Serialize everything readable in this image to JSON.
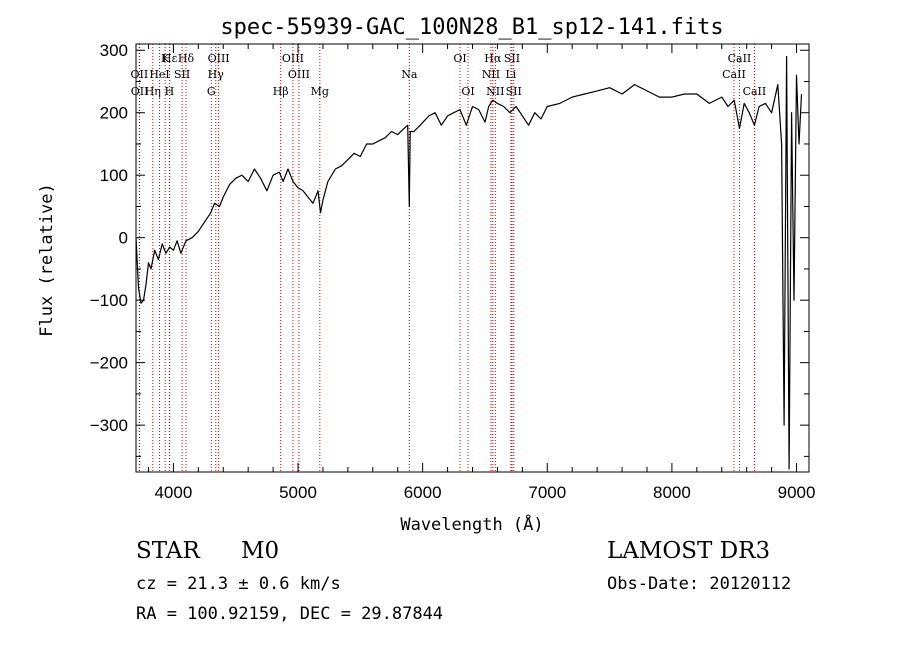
{
  "chart_data": {
    "type": "line",
    "title": "spec-55939-GAC_100N28_B1_sp12-141.fits",
    "xlabel": "Wavelength (Å)",
    "ylabel": "Flux (relative)",
    "xlim": [
      3700,
      9100
    ],
    "ylim": [
      -375,
      310
    ],
    "x_ticks": [
      4000,
      5000,
      6000,
      7000,
      8000,
      9000
    ],
    "y_ticks": [
      -300,
      -200,
      -100,
      0,
      100,
      200,
      300
    ],
    "series": [
      {
        "name": "flux",
        "x": [
          3700,
          3720,
          3740,
          3760,
          3780,
          3800,
          3820,
          3850,
          3880,
          3910,
          3940,
          3970,
          4000,
          4030,
          4060,
          4100,
          4150,
          4200,
          4250,
          4300,
          4330,
          4370,
          4400,
          4450,
          4500,
          4550,
          4600,
          4650,
          4700,
          4750,
          4800,
          4850,
          4880,
          4920,
          4960,
          5000,
          5040,
          5080,
          5120,
          5160,
          5180,
          5200,
          5240,
          5300,
          5350,
          5400,
          5450,
          5500,
          5550,
          5600,
          5650,
          5700,
          5750,
          5800,
          5850,
          5880,
          5893,
          5900,
          5930,
          5980,
          6050,
          6100,
          6150,
          6200,
          6250,
          6300,
          6350,
          6400,
          6450,
          6500,
          6530,
          6562,
          6600,
          6650,
          6700,
          6750,
          6800,
          6850,
          6900,
          6950,
          7000,
          7100,
          7200,
          7300,
          7400,
          7500,
          7600,
          7700,
          7800,
          7900,
          8000,
          8100,
          8200,
          8300,
          8400,
          8450,
          8500,
          8542,
          8580,
          8620,
          8662,
          8700,
          8750,
          8800,
          8850,
          8880,
          8900,
          8920,
          8940,
          8960,
          8980,
          9000,
          9020,
          9040
        ],
        "y": [
          0,
          -80,
          -105,
          -100,
          -75,
          -40,
          -50,
          -20,
          -35,
          -10,
          -25,
          -15,
          -20,
          -5,
          -25,
          -5,
          0,
          10,
          25,
          40,
          55,
          50,
          65,
          85,
          95,
          100,
          90,
          110,
          95,
          75,
          100,
          105,
          90,
          110,
          90,
          80,
          75,
          65,
          55,
          75,
          40,
          60,
          90,
          110,
          115,
          125,
          135,
          130,
          150,
          150,
          155,
          160,
          170,
          165,
          175,
          180,
          50,
          170,
          170,
          180,
          195,
          200,
          180,
          195,
          200,
          205,
          180,
          210,
          205,
          185,
          210,
          220,
          215,
          210,
          200,
          210,
          195,
          180,
          200,
          190,
          210,
          215,
          225,
          230,
          235,
          240,
          230,
          245,
          235,
          225,
          225,
          230,
          230,
          215,
          225,
          210,
          220,
          175,
          215,
          200,
          180,
          210,
          215,
          200,
          245,
          150,
          -300,
          290,
          -370,
          200,
          -100,
          260,
          150,
          230
        ]
      }
    ],
    "line_markers": [
      {
        "label": "Hε",
        "x": 3970,
        "row": 1
      },
      {
        "label": "Hδ",
        "x": 4101,
        "row": 1
      },
      {
        "label": "OIII",
        "x": 4363,
        "row": 1
      },
      {
        "label": "OIII",
        "x": 4959,
        "row": 1
      },
      {
        "label": "OI",
        "x": 6300,
        "row": 1
      },
      {
        "label": "Hα",
        "x": 6563,
        "row": 1
      },
      {
        "label": "SII",
        "x": 6717,
        "row": 1
      },
      {
        "label": "CaII",
        "x": 8542,
        "row": 1
      },
      {
        "label": "K",
        "x": 3934,
        "row": 1
      },
      {
        "label": "OII",
        "x": 3727,
        "row": 2
      },
      {
        "label": "HeI",
        "x": 3889,
        "row": 2
      },
      {
        "label": "SII",
        "x": 4070,
        "row": 2
      },
      {
        "label": "Hγ",
        "x": 4340,
        "row": 2
      },
      {
        "label": "OIII",
        "x": 5007,
        "row": 2
      },
      {
        "label": "Na",
        "x": 5893,
        "row": 2
      },
      {
        "label": "NII",
        "x": 6548,
        "row": 2
      },
      {
        "label": "Li",
        "x": 6708,
        "row": 2
      },
      {
        "label": "CaII",
        "x": 8498,
        "row": 2
      },
      {
        "label": "OII",
        "x": 3729,
        "row": 3
      },
      {
        "label": "Hη",
        "x": 3835,
        "row": 3
      },
      {
        "label": "H",
        "x": 3968,
        "row": 3
      },
      {
        "label": "G",
        "x": 4304,
        "row": 3
      },
      {
        "label": "Hβ",
        "x": 4861,
        "row": 3
      },
      {
        "label": "Mg",
        "x": 5175,
        "row": 3
      },
      {
        "label": "OI",
        "x": 6364,
        "row": 3
      },
      {
        "label": "NII",
        "x": 6583,
        "row": 3
      },
      {
        "label": "SII",
        "x": 6731,
        "row": 3
      },
      {
        "label": "CaII",
        "x": 8662,
        "row": 3
      }
    ]
  },
  "info": {
    "object_class": "STAR",
    "subclass": "M0",
    "survey": "LAMOST DR3",
    "redshift": "cz = 21.3 ± 0.6 km/s",
    "obs_date": "Obs-Date: 20120112",
    "coords": "RA = 100.92159, DEC =  29.87844"
  },
  "colors": {
    "axis": "#000000",
    "line": "#000000",
    "marker": "#cc0000"
  }
}
